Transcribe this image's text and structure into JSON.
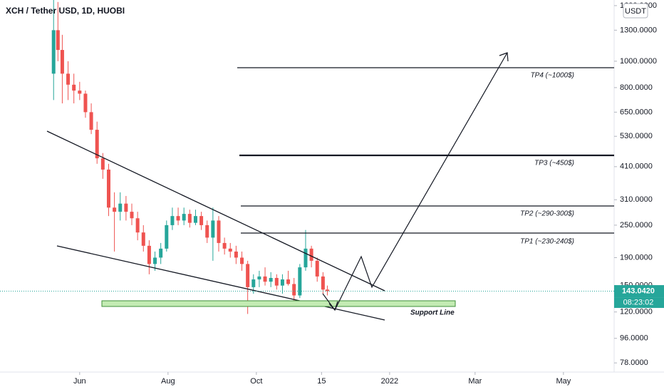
{
  "chart_data": {
    "type": "candlestick",
    "title": "XCH / Tether USD, 1D, HUOBI",
    "currency_badge": "USDT",
    "log_scale": true,
    "colors": {
      "up": "#26a69a",
      "down": "#ef5350"
    },
    "candles": {
      "x": [
        -18,
        -15,
        -12,
        -8,
        -4,
        0,
        4,
        8,
        12,
        16,
        20,
        24,
        28,
        32,
        36,
        40,
        44,
        48,
        52,
        56,
        60,
        64,
        68,
        72,
        76,
        80,
        84,
        88,
        92,
        96,
        100,
        104,
        108,
        112,
        116,
        120,
        124,
        128,
        132,
        136,
        140,
        144,
        148,
        152,
        156,
        160,
        164,
        168,
        171
      ],
      "open": [
        900,
        1300,
        1100,
        900,
        820,
        780,
        760,
        650,
        560,
        440,
        400,
        290,
        280,
        300,
        280,
        265,
        235,
        210,
        180,
        190,
        205,
        250,
        270,
        260,
        275,
        255,
        270,
        250,
        225,
        260,
        215,
        205,
        200,
        190,
        180,
        148,
        158,
        162,
        155,
        160,
        150,
        158,
        152,
        138,
        175,
        205,
        185,
        162,
        145
      ],
      "high": [
        1700,
        1650,
        1250,
        1000,
        900,
        840,
        780,
        700,
        600,
        460,
        420,
        330,
        330,
        320,
        300,
        280,
        250,
        220,
        200,
        215,
        260,
        290,
        290,
        290,
        285,
        285,
        280,
        260,
        290,
        270,
        225,
        215,
        210,
        200,
        185,
        165,
        170,
        175,
        168,
        165,
        165,
        170,
        160,
        180,
        240,
        210,
        190,
        168,
        150
      ],
      "low": [
        720,
        1000,
        700,
        720,
        700,
        720,
        620,
        540,
        420,
        370,
        270,
        200,
        260,
        260,
        250,
        220,
        200,
        165,
        170,
        180,
        200,
        240,
        250,
        250,
        245,
        250,
        240,
        215,
        185,
        200,
        195,
        190,
        180,
        170,
        118,
        140,
        148,
        150,
        148,
        145,
        140,
        150,
        128,
        135,
        170,
        175,
        155,
        140,
        138
      ],
      "close": [
        1300,
        1100,
        900,
        820,
        780,
        760,
        650,
        560,
        440,
        400,
        290,
        280,
        300,
        280,
        265,
        235,
        210,
        180,
        190,
        205,
        250,
        270,
        260,
        275,
        255,
        270,
        250,
        225,
        260,
        215,
        205,
        200,
        190,
        180,
        148,
        158,
        162,
        155,
        160,
        150,
        158,
        152,
        138,
        175,
        205,
        185,
        162,
        145,
        143.042
      ]
    },
    "xlim": [
      -55,
      369
    ],
    "xticks": [
      {
        "value": 0,
        "label": "Jun"
      },
      {
        "value": 61,
        "label": "Aug"
      },
      {
        "value": 122,
        "label": "Oct"
      },
      {
        "value": 167,
        "label": "15"
      },
      {
        "value": 214,
        "label": "2022"
      },
      {
        "value": 273,
        "label": "Mar"
      },
      {
        "value": 334,
        "label": "May"
      }
    ],
    "ylim": [
      72.2,
      1678
    ],
    "yticks": [
      {
        "value": 1600,
        "label": "1600.0000"
      },
      {
        "value": 1300,
        "label": "1300.0000"
      },
      {
        "value": 1000,
        "label": "1000.0000"
      },
      {
        "value": 800,
        "label": "800.0000"
      },
      {
        "value": 650,
        "label": "650.0000"
      },
      {
        "value": 530,
        "label": "530.0000"
      },
      {
        "value": 410,
        "label": "410.0000"
      },
      {
        "value": 310,
        "label": "310.0000"
      },
      {
        "value": 250,
        "label": "250.0000"
      },
      {
        "value": 190,
        "label": "190.0000"
      },
      {
        "value": 150,
        "label": "150.0000"
      },
      {
        "value": 120,
        "label": "120.0000"
      },
      {
        "value": 96,
        "label": "96.0000"
      },
      {
        "value": 78,
        "label": "78.0000"
      }
    ],
    "last_price": {
      "value": 143.042,
      "label": "143.0420"
    },
    "countdown": "08:23:02",
    "annotations": {
      "tp4": "TP4 (~1000$)",
      "tp3": "TP3 (~450$)",
      "tp2": "TP2 (~290-300$)",
      "tp1": "TP1 (~230-240$)",
      "support": "Support Line"
    }
  }
}
